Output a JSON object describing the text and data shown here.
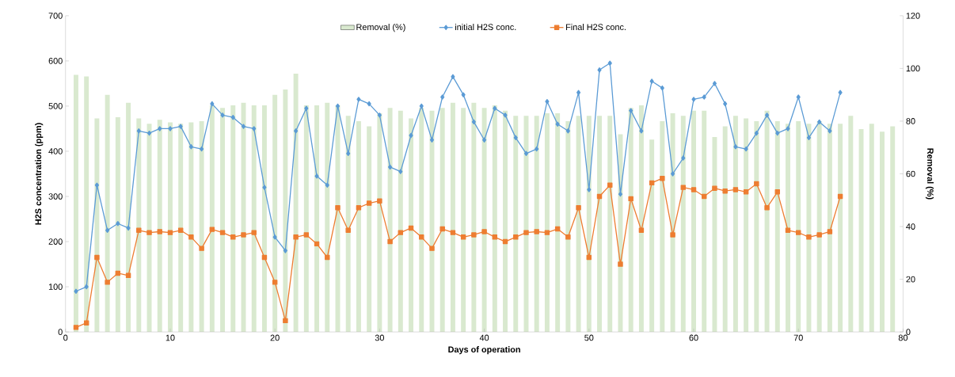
{
  "chart_data": {
    "type": "line",
    "xlabel": "Days of operation",
    "ylabel": "H2S concentration (ppm)",
    "y2label": "Removal (%)",
    "xlim": [
      0,
      80
    ],
    "xticks": [
      0,
      10,
      20,
      30,
      40,
      50,
      60,
      70,
      80
    ],
    "ylim": [
      0,
      700
    ],
    "yticks": [
      0,
      100,
      200,
      300,
      400,
      500,
      600,
      700
    ],
    "y2lim": [
      0,
      120
    ],
    "y2ticks": [
      0,
      20,
      40,
      60,
      80,
      100,
      120
    ],
    "legend": "top",
    "grid": false,
    "series": [
      {
        "name": "Removal (%)",
        "type": "bar",
        "axis": "y2",
        "color": "#d9e9cf",
        "x": [
          1,
          2,
          3,
          4,
          5,
          6,
          7,
          8,
          9,
          10,
          11,
          12,
          13,
          14,
          15,
          16,
          17,
          18,
          19,
          20,
          21,
          22,
          23,
          24,
          25,
          26,
          27,
          28,
          29,
          30,
          31,
          32,
          33,
          34,
          35,
          36,
          37,
          38,
          39,
          40,
          41,
          42,
          43,
          44,
          45,
          46,
          47,
          48,
          49,
          50,
          51,
          52,
          53,
          54,
          55,
          56,
          57,
          58,
          59,
          60,
          61,
          62,
          63,
          64,
          65,
          66,
          67,
          68,
          69,
          70,
          71,
          72,
          73,
          74,
          75,
          76,
          77,
          78,
          79
        ],
        "values": [
          97.6,
          97,
          81,
          90,
          81.5,
          87,
          81,
          79,
          80.5,
          79.5,
          79,
          79.5,
          80,
          86,
          85,
          86,
          87,
          86,
          86,
          90,
          92,
          98,
          86,
          86,
          87,
          86,
          82,
          80,
          78,
          83,
          85,
          84,
          81,
          85,
          84,
          85,
          87,
          85,
          87,
          85,
          86,
          84,
          82,
          82,
          82,
          83,
          83,
          80,
          82,
          82,
          82,
          82,
          75,
          85,
          86,
          73,
          80,
          83,
          82,
          84,
          84,
          74,
          78,
          82,
          81,
          80,
          84,
          80,
          79,
          80,
          79,
          80,
          79,
          79,
          82,
          77,
          79,
          76,
          78
        ]
      },
      {
        "name": "initial H2S conc.",
        "marker": "diamond",
        "color": "#5b9bd5",
        "x": [
          1,
          2,
          3,
          4,
          5,
          6,
          7,
          8,
          9,
          10,
          11,
          12,
          13,
          14,
          15,
          16,
          17,
          18,
          19,
          20,
          21,
          22,
          23,
          24,
          25,
          26,
          27,
          28,
          29,
          30,
          31,
          32,
          33,
          34,
          35,
          36,
          37,
          38,
          39,
          40,
          41,
          42,
          43,
          44,
          45,
          46,
          47,
          48,
          49,
          50,
          51,
          52,
          53,
          54,
          55,
          56,
          57,
          58,
          59,
          60,
          61,
          62,
          63,
          64,
          65,
          66,
          67,
          68,
          69,
          70,
          71,
          72,
          73,
          74
        ],
        "values": [
          90,
          100,
          325,
          225,
          240,
          230,
          445,
          440,
          450,
          450,
          455,
          410,
          405,
          505,
          480,
          475,
          455,
          450,
          320,
          210,
          180,
          445,
          495,
          345,
          325,
          500,
          395,
          515,
          505,
          480,
          365,
          355,
          435,
          500,
          425,
          520,
          565,
          525,
          465,
          425,
          495,
          480,
          430,
          395,
          405,
          510,
          460,
          445,
          530,
          315,
          580,
          595,
          305,
          490,
          445,
          555,
          540,
          350,
          385,
          515,
          520,
          550,
          505,
          410,
          405,
          440,
          480,
          440,
          450,
          520,
          430,
          465,
          445,
          530
        ]
      },
      {
        "name": "Final H2S conc.",
        "marker": "square",
        "color": "#ed7d31",
        "x": [
          1,
          2,
          3,
          4,
          5,
          6,
          7,
          8,
          9,
          10,
          11,
          12,
          13,
          14,
          15,
          16,
          17,
          18,
          19,
          20,
          21,
          22,
          23,
          24,
          25,
          26,
          27,
          28,
          29,
          30,
          31,
          32,
          33,
          34,
          35,
          36,
          37,
          38,
          39,
          40,
          41,
          42,
          43,
          44,
          45,
          46,
          47,
          48,
          49,
          50,
          51,
          52,
          53,
          54,
          55,
          56,
          57,
          58,
          59,
          60,
          61,
          62,
          63,
          64,
          65,
          66,
          67,
          68,
          69,
          70,
          71,
          72,
          73,
          74
        ],
        "values": [
          10,
          20,
          165,
          110,
          130,
          125,
          225,
          220,
          222,
          220,
          225,
          210,
          185,
          227,
          220,
          210,
          215,
          220,
          165,
          110,
          25,
          210,
          215,
          195,
          165,
          275,
          225,
          275,
          285,
          290,
          200,
          220,
          230,
          210,
          185,
          228,
          220,
          210,
          215,
          222,
          210,
          200,
          210,
          220,
          222,
          220,
          228,
          210,
          275,
          165,
          300,
          325,
          150,
          295,
          225,
          330,
          340,
          215,
          320,
          315,
          300,
          318,
          312,
          315,
          310,
          328,
          275,
          310,
          225,
          220,
          210,
          215,
          222,
          300
        ]
      }
    ]
  }
}
